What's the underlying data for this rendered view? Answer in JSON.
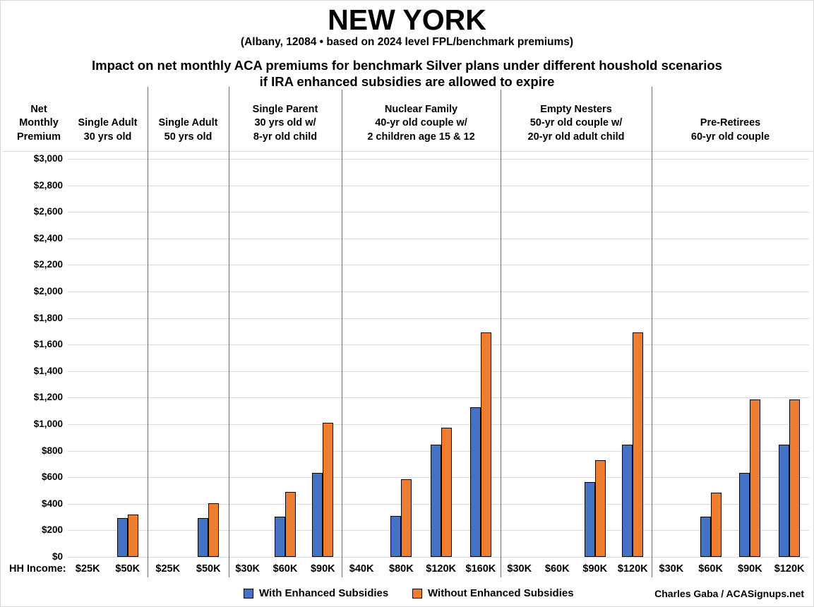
{
  "page": {
    "title": "NEW YORK",
    "subtitle": "(Albany, 12084 • based on 2024 level FPL/benchmark premiums)",
    "heading_line1": "Impact on net monthly ACA premiums for benchmark Silver plans under different houshold scenarios",
    "heading_line2": "if IRA enhanced subsidies are allowed to expire",
    "credit": "Charles Gaba / ACASignups.net"
  },
  "chart_data": {
    "type": "bar",
    "title": "NEW YORK",
    "subtitle": "(Albany, 12084 • based on 2024 level FPL/benchmark premiums)",
    "heading": "Impact on net monthly ACA premiums for benchmark Silver plans under different houshold scenarios if IRA enhanced subsidies are allowed to expire",
    "y_axis_title_lines": [
      "Net",
      "Monthly",
      "Premium"
    ],
    "x_axis_prefix": "HH Income:",
    "ylim": [
      0,
      3000
    ],
    "ytick_step": 200,
    "yticks": [
      "$0",
      "$200",
      "$400",
      "$600",
      "$800",
      "$1,000",
      "$1,200",
      "$1,400",
      "$1,600",
      "$1,800",
      "$2,000",
      "$2,200",
      "$2,400",
      "$2,600",
      "$2,800",
      "$3,000"
    ],
    "grid": true,
    "legend_position": "bottom",
    "series_names": [
      "With Enhanced Subsidies",
      "Without Enhanced Subsidies"
    ],
    "colors": {
      "with_enhanced": "#4472C4",
      "without_enhanced": "#ED7D31",
      "bar_border": "#000000",
      "gridline": "#D9D9D9",
      "panel_divider": "#6E6E6E"
    },
    "panels": [
      {
        "label_lines": [
          "Single Adult",
          "30 yrs old"
        ],
        "groups": [
          {
            "income": "$25K",
            "with_enhanced": 0,
            "without_enhanced": 0
          },
          {
            "income": "$50K",
            "with_enhanced": 295,
            "without_enhanced": 320
          }
        ]
      },
      {
        "label_lines": [
          "Single Adult",
          "50 yrs old"
        ],
        "groups": [
          {
            "income": "$25K",
            "with_enhanced": 0,
            "without_enhanced": 0
          },
          {
            "income": "$50K",
            "with_enhanced": 295,
            "without_enhanced": 405
          }
        ]
      },
      {
        "label_lines": [
          "Single Parent",
          "30 yrs old w/",
          "8-yr old child"
        ],
        "groups": [
          {
            "income": "$30K",
            "with_enhanced": 0,
            "without_enhanced": 0
          },
          {
            "income": "$60K",
            "with_enhanced": 305,
            "without_enhanced": 490
          },
          {
            "income": "$90K",
            "with_enhanced": 635,
            "without_enhanced": 1010
          }
        ]
      },
      {
        "label_lines": [
          "Nuclear Family",
          "40-yr old couple w/",
          "2 children age 15 & 12"
        ],
        "groups": [
          {
            "income": "$40K",
            "with_enhanced": 0,
            "without_enhanced": 0
          },
          {
            "income": "$80K",
            "with_enhanced": 310,
            "without_enhanced": 585
          },
          {
            "income": "$120K",
            "with_enhanced": 845,
            "without_enhanced": 975
          },
          {
            "income": "$160K",
            "with_enhanced": 1130,
            "without_enhanced": 1690
          }
        ]
      },
      {
        "label_lines": [
          "Empty Nesters",
          "50-yr old couple w/",
          "20-yr old adult child"
        ],
        "groups": [
          {
            "income": "$30K",
            "with_enhanced": 0,
            "without_enhanced": 0
          },
          {
            "income": "$60K",
            "with_enhanced": 0,
            "without_enhanced": 0
          },
          {
            "income": "$90K",
            "with_enhanced": 565,
            "without_enhanced": 730
          },
          {
            "income": "$120K",
            "with_enhanced": 845,
            "without_enhanced": 1690
          }
        ]
      },
      {
        "label_lines": [
          "Pre-Retirees",
          "60-yr old couple"
        ],
        "groups": [
          {
            "income": "$30K",
            "with_enhanced": 0,
            "without_enhanced": 0
          },
          {
            "income": "$60K",
            "with_enhanced": 305,
            "without_enhanced": 485
          },
          {
            "income": "$90K",
            "with_enhanced": 635,
            "without_enhanced": 1185
          },
          {
            "income": "$120K",
            "with_enhanced": 845,
            "without_enhanced": 1185
          }
        ]
      }
    ],
    "legend": [
      {
        "label": "With Enhanced Subsidies",
        "color": "#4472C4"
      },
      {
        "label": "Without Enhanced Subsidies",
        "color": "#ED7D31"
      }
    ],
    "credit": "Charles Gaba / ACASignups.net"
  }
}
